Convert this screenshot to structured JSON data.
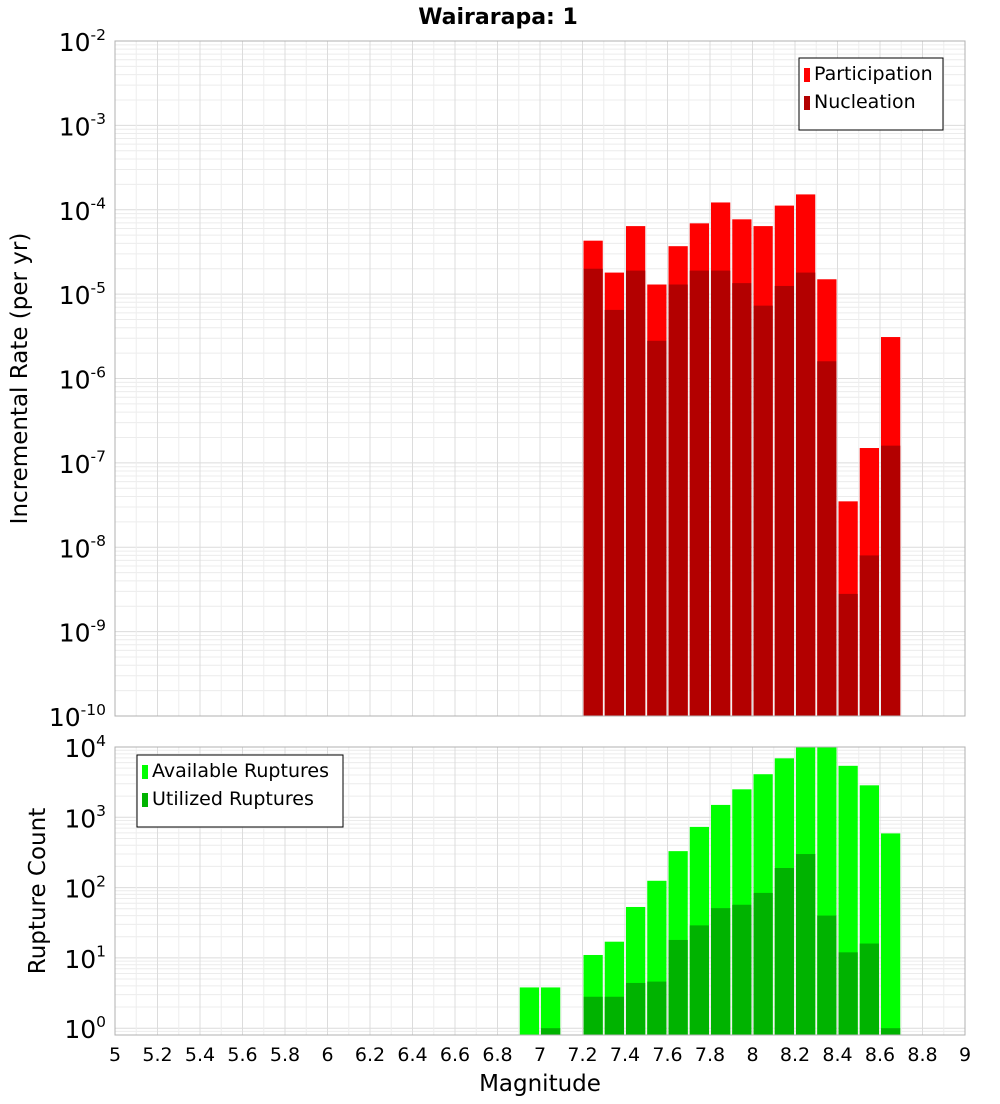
{
  "title": "Wairarapa: 1",
  "colors": {
    "participation": "#ff0000",
    "nucleation": "#b30000",
    "available": "#00ff00",
    "utilized": "#00b300",
    "grid": "#e6e6e6",
    "plot_border": "#b0b0b0"
  },
  "chart_data": [
    {
      "type": "bar",
      "name": "rate-panel",
      "ylabel": "Incremental Rate (per yr)",
      "xlabel": "",
      "ylog": true,
      "ylim": [
        1e-10,
        0.01
      ],
      "xlim": [
        5,
        9
      ],
      "y_ticks": [
        {
          "base": "10",
          "exp": "-10"
        },
        {
          "base": "10",
          "exp": "-9"
        },
        {
          "base": "10",
          "exp": "-8"
        },
        {
          "base": "10",
          "exp": "-7"
        },
        {
          "base": "10",
          "exp": "-6"
        },
        {
          "base": "10",
          "exp": "-5"
        },
        {
          "base": "10",
          "exp": "-4"
        },
        {
          "base": "10",
          "exp": "-3"
        },
        {
          "base": "10",
          "exp": "-2"
        }
      ],
      "legend_position": "top-right",
      "legend": [
        "Participation",
        "Nucleation"
      ],
      "x": [
        7.25,
        7.35,
        7.45,
        7.55,
        7.65,
        7.75,
        7.85,
        7.95,
        8.05,
        8.15,
        8.25,
        8.35,
        8.45,
        8.55,
        8.65
      ],
      "series": [
        {
          "name": "Participation",
          "values": [
            4.3e-05,
            1.8e-05,
            6.4e-05,
            1.3e-05,
            3.7e-05,
            6.9e-05,
            0.000122,
            7.7e-05,
            6.4e-05,
            0.000112,
            0.000152,
            1.5e-05,
            3.5e-08,
            1.5e-07,
            3.1e-06
          ]
        },
        {
          "name": "Nucleation",
          "values": [
            2e-05,
            6.5e-06,
            1.9e-05,
            2.8e-06,
            1.3e-05,
            1.9e-05,
            1.9e-05,
            1.35e-05,
            7.3e-06,
            1.25e-05,
            1.8e-05,
            1.6e-06,
            2.8e-09,
            8e-09,
            1.6e-07
          ]
        }
      ]
    },
    {
      "type": "bar",
      "name": "count-panel",
      "ylabel": "Rupture Count",
      "xlabel": "Magnitude",
      "ylog": true,
      "ylim": [
        0.8,
        10000
      ],
      "xlim": [
        5,
        9
      ],
      "y_ticks": [
        {
          "value": 1,
          "base": "10",
          "exp": "0"
        },
        {
          "value": 10,
          "base": "10",
          "exp": "1"
        },
        {
          "value": 100,
          "base": "10",
          "exp": "2"
        },
        {
          "value": 1000,
          "base": "10",
          "exp": "3"
        },
        {
          "value": 10000,
          "base": "10",
          "exp": "4"
        }
      ],
      "x_ticks": [
        "5",
        "5.2",
        "5.4",
        "5.6",
        "5.8",
        "6",
        "6.2",
        "6.4",
        "6.6",
        "6.8",
        "7",
        "7.2",
        "7.4",
        "7.6",
        "7.8",
        "8",
        "8.2",
        "8.4",
        "8.6",
        "8.8",
        "9"
      ],
      "legend_position": "top-left",
      "legend": [
        "Available Ruptures",
        "Utilized Ruptures"
      ],
      "x": [
        6.95,
        7.05,
        7.25,
        7.35,
        7.45,
        7.55,
        7.65,
        7.75,
        7.85,
        7.95,
        8.05,
        8.15,
        8.25,
        8.35,
        8.45,
        8.55,
        8.65
      ],
      "series": [
        {
          "name": "Available Ruptures",
          "values": [
            3.8,
            3.8,
            11,
            17,
            53,
            125,
            330,
            730,
            1500,
            2500,
            4100,
            6900,
            10000,
            10000,
            5400,
            2850,
            590
          ]
        },
        {
          "name": "Utilized Ruptures",
          "values": [
            0,
            1,
            2.8,
            2.8,
            4.4,
            4.6,
            18,
            29,
            51,
            57,
            84,
            190,
            300,
            40,
            12,
            16,
            1
          ]
        }
      ]
    }
  ]
}
